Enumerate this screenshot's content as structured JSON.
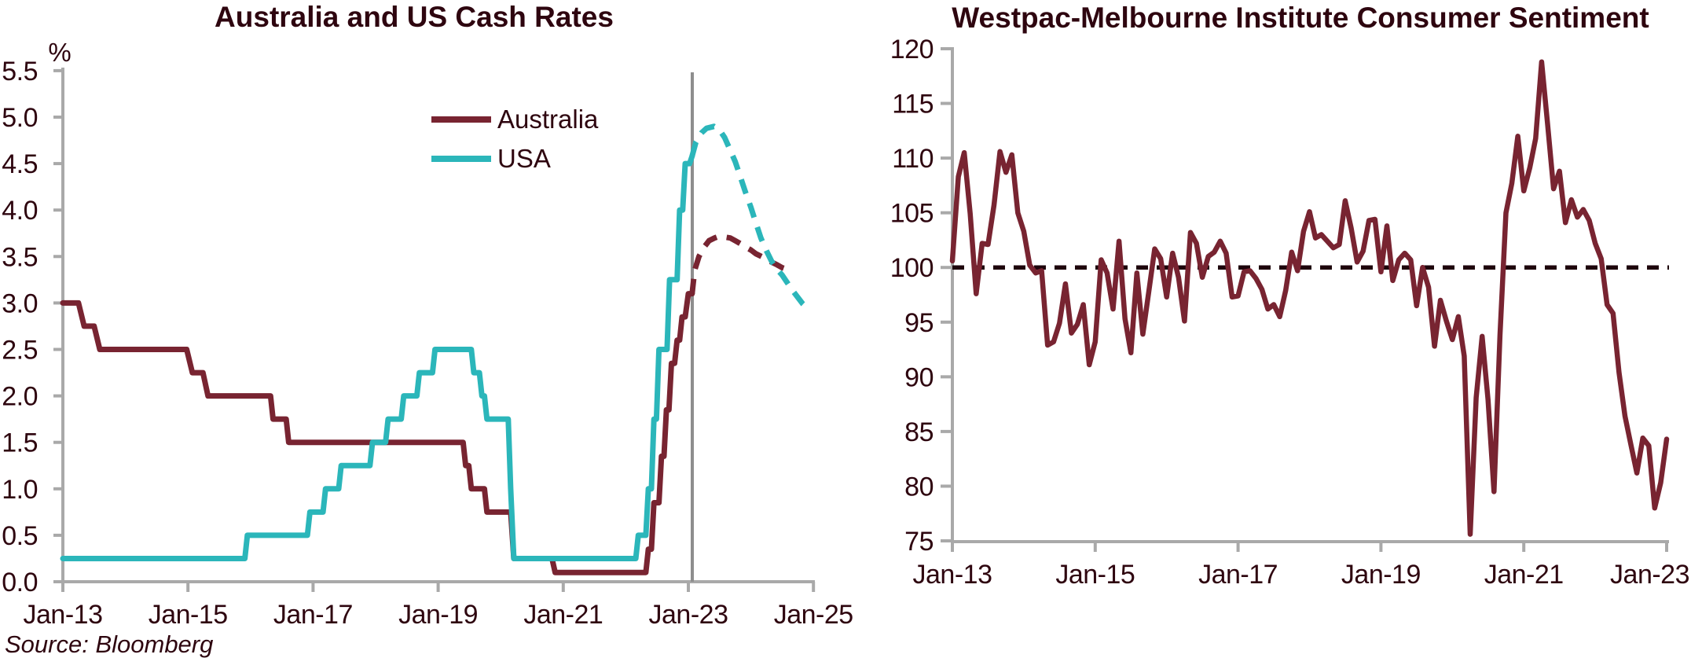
{
  "source_note": "Source: Bloomberg",
  "chart_data": [
    {
      "type": "line",
      "title": "Australia and US Cash Rates",
      "ylabel": "%",
      "xlabel": "",
      "xlim": [
        2013,
        2025
      ],
      "ylim": [
        0,
        5.5
      ],
      "grid": false,
      "legend_position": "upper-center-inside",
      "divider_x": 2023.06,
      "colors": {
        "australia": "#782431",
        "usa": "#2bb6ba",
        "axis": "#a9a9a9",
        "divider": "#8e8e8e",
        "ink": "#2e050f"
      },
      "legend": [
        "Australia",
        "USA"
      ],
      "y_ticks": [
        {
          "v": 5.5,
          "label": "5.5"
        },
        {
          "v": 5.0,
          "label": "5.0"
        },
        {
          "v": 4.5,
          "label": "4.5"
        },
        {
          "v": 4.0,
          "label": "4.0"
        },
        {
          "v": 3.5,
          "label": "3.5"
        },
        {
          "v": 3.0,
          "label": "3.0"
        },
        {
          "v": 2.5,
          "label": "2.5"
        },
        {
          "v": 2.0,
          "label": "2.0"
        },
        {
          "v": 1.5,
          "label": "1.5"
        },
        {
          "v": 1.0,
          "label": "1.0"
        },
        {
          "v": 0.5,
          "label": "0.5"
        },
        {
          "v": 0.0,
          "label": "0.0"
        }
      ],
      "x_ticks": [
        {
          "v": 2013,
          "label": "Jan-13"
        },
        {
          "v": 2015,
          "label": "Jan-15"
        },
        {
          "v": 2017,
          "label": "Jan-17"
        },
        {
          "v": 2019,
          "label": "Jan-19"
        },
        {
          "v": 2021,
          "label": "Jan-21"
        },
        {
          "v": 2023,
          "label": "Jan-23"
        },
        {
          "v": 2025,
          "label": "Jan-25"
        }
      ],
      "series": [
        {
          "name": "Australia",
          "color": "#782431",
          "style": "solid",
          "points": [
            [
              2013.0,
              3.0
            ],
            [
              2013.25,
              3.0
            ],
            [
              2013.34,
              2.75
            ],
            [
              2013.5,
              2.75
            ],
            [
              2013.59,
              2.5
            ],
            [
              2014.98,
              2.5
            ],
            [
              2015.07,
              2.25
            ],
            [
              2015.24,
              2.25
            ],
            [
              2015.32,
              2.0
            ],
            [
              2016.32,
              2.0
            ],
            [
              2016.36,
              1.75
            ],
            [
              2016.57,
              1.75
            ],
            [
              2016.61,
              1.5
            ],
            [
              2019.4,
              1.5
            ],
            [
              2019.44,
              1.25
            ],
            [
              2019.49,
              1.25
            ],
            [
              2019.53,
              1.0
            ],
            [
              2019.74,
              1.0
            ],
            [
              2019.78,
              0.75
            ],
            [
              2020.16,
              0.75
            ],
            [
              2020.21,
              0.25
            ],
            [
              2020.82,
              0.25
            ],
            [
              2020.87,
              0.1
            ],
            [
              2022.32,
              0.1
            ],
            [
              2022.36,
              0.35
            ],
            [
              2022.41,
              0.35
            ],
            [
              2022.45,
              0.85
            ],
            [
              2022.53,
              0.85
            ],
            [
              2022.57,
              1.35
            ],
            [
              2022.61,
              1.35
            ],
            [
              2022.65,
              1.85
            ],
            [
              2022.69,
              1.85
            ],
            [
              2022.73,
              2.35
            ],
            [
              2022.78,
              2.35
            ],
            [
              2022.82,
              2.6
            ],
            [
              2022.86,
              2.6
            ],
            [
              2022.9,
              2.85
            ],
            [
              2022.95,
              2.85
            ],
            [
              2023.0,
              3.1
            ],
            [
              2023.06,
              3.1
            ]
          ]
        },
        {
          "name": "Australia forecast",
          "color": "#782431",
          "style": "dashed",
          "points": [
            [
              2023.06,
              3.1
            ],
            [
              2023.1,
              3.35
            ],
            [
              2023.17,
              3.5
            ],
            [
              2023.25,
              3.6
            ],
            [
              2023.33,
              3.67
            ],
            [
              2023.42,
              3.7
            ],
            [
              2023.5,
              3.72
            ],
            [
              2023.58,
              3.71
            ],
            [
              2023.67,
              3.7
            ],
            [
              2023.75,
              3.67
            ],
            [
              2023.83,
              3.64
            ],
            [
              2023.92,
              3.6
            ],
            [
              2024.0,
              3.57
            ],
            [
              2024.08,
              3.53
            ],
            [
              2024.17,
              3.5
            ],
            [
              2024.25,
              3.47
            ],
            [
              2024.33,
              3.44
            ],
            [
              2024.42,
              3.41
            ],
            [
              2024.5,
              3.38
            ],
            [
              2024.58,
              3.36
            ],
            [
              2024.67,
              3.34
            ]
          ]
        },
        {
          "name": "USA",
          "color": "#2bb6ba",
          "style": "solid",
          "points": [
            [
              2013.0,
              0.25
            ],
            [
              2015.91,
              0.25
            ],
            [
              2015.95,
              0.5
            ],
            [
              2016.91,
              0.5
            ],
            [
              2016.95,
              0.75
            ],
            [
              2017.16,
              0.75
            ],
            [
              2017.2,
              1.0
            ],
            [
              2017.41,
              1.0
            ],
            [
              2017.45,
              1.25
            ],
            [
              2017.91,
              1.25
            ],
            [
              2017.95,
              1.5
            ],
            [
              2018.16,
              1.5
            ],
            [
              2018.2,
              1.75
            ],
            [
              2018.41,
              1.75
            ],
            [
              2018.45,
              2.0
            ],
            [
              2018.66,
              2.0
            ],
            [
              2018.7,
              2.25
            ],
            [
              2018.91,
              2.25
            ],
            [
              2018.95,
              2.5
            ],
            [
              2019.53,
              2.5
            ],
            [
              2019.57,
              2.25
            ],
            [
              2019.66,
              2.25
            ],
            [
              2019.7,
              2.0
            ],
            [
              2019.74,
              2.0
            ],
            [
              2019.78,
              1.75
            ],
            [
              2020.12,
              1.75
            ],
            [
              2020.16,
              1.0
            ],
            [
              2020.21,
              0.25
            ],
            [
              2022.16,
              0.25
            ],
            [
              2022.2,
              0.5
            ],
            [
              2022.32,
              0.5
            ],
            [
              2022.36,
              1.0
            ],
            [
              2022.41,
              1.0
            ],
            [
              2022.45,
              1.75
            ],
            [
              2022.49,
              1.75
            ],
            [
              2022.53,
              2.5
            ],
            [
              2022.66,
              2.5
            ],
            [
              2022.7,
              3.25
            ],
            [
              2022.82,
              3.25
            ],
            [
              2022.86,
              4.0
            ],
            [
              2022.91,
              4.0
            ],
            [
              2022.95,
              4.5
            ],
            [
              2023.02,
              4.5
            ],
            [
              2023.06,
              4.58
            ]
          ]
        },
        {
          "name": "USA forecast",
          "color": "#2bb6ba",
          "style": "dashed",
          "points": [
            [
              2023.06,
              4.58
            ],
            [
              2023.12,
              4.73
            ],
            [
              2023.21,
              4.83
            ],
            [
              2023.29,
              4.88
            ],
            [
              2023.41,
              4.9
            ],
            [
              2023.5,
              4.86
            ],
            [
              2023.58,
              4.78
            ],
            [
              2023.66,
              4.66
            ],
            [
              2023.75,
              4.52
            ],
            [
              2023.83,
              4.36
            ],
            [
              2023.91,
              4.2
            ],
            [
              2024.0,
              4.03
            ],
            [
              2024.08,
              3.86
            ],
            [
              2024.16,
              3.7
            ],
            [
              2024.25,
              3.56
            ],
            [
              2024.33,
              3.45
            ],
            [
              2024.41,
              3.37
            ],
            [
              2024.5,
              3.3
            ],
            [
              2024.58,
              3.22
            ],
            [
              2024.66,
              3.14
            ],
            [
              2024.75,
              3.06
            ],
            [
              2024.83,
              2.99
            ],
            [
              2024.91,
              2.94
            ]
          ]
        }
      ]
    },
    {
      "type": "line",
      "title": "Westpac-Melbourne Institute Consumer Sentiment",
      "xlabel": "",
      "ylabel": "",
      "xlim": [
        2013,
        2023
      ],
      "ylim": [
        75,
        120
      ],
      "grid": false,
      "line_color": "#782431",
      "axis_color": "#a9a9a9",
      "reference_line": {
        "y": 100,
        "style": "dashed",
        "color": "#1e040c"
      },
      "y_ticks": [
        {
          "v": 120,
          "label": "120"
        },
        {
          "v": 115,
          "label": "115"
        },
        {
          "v": 110,
          "label": "110"
        },
        {
          "v": 105,
          "label": "105"
        },
        {
          "v": 100,
          "label": "100"
        },
        {
          "v": 95,
          "label": "95"
        },
        {
          "v": 90,
          "label": "90"
        },
        {
          "v": 85,
          "label": "85"
        },
        {
          "v": 80,
          "label": "80"
        },
        {
          "v": 75,
          "label": "75"
        }
      ],
      "x_ticks": [
        {
          "v": 2013,
          "label": "Jan-13"
        },
        {
          "v": 2015,
          "label": "Jan-15"
        },
        {
          "v": 2017,
          "label": "Jan-17"
        },
        {
          "v": 2019,
          "label": "Jan-19"
        },
        {
          "v": 2021,
          "label": "Jan-21"
        },
        {
          "v": 2023,
          "label": "Jan-23"
        }
      ],
      "x0": 2013,
      "x_step_years": 0.083333,
      "values": [
        100.6,
        108.3,
        110.5,
        104.9,
        97.6,
        102.2,
        102.1,
        105.7,
        110.6,
        108.7,
        110.3,
        105.0,
        103.3,
        100.2,
        99.5,
        99.7,
        92.9,
        93.2,
        94.9,
        98.5,
        94.0,
        94.8,
        96.6,
        91.1,
        93.2,
        100.7,
        99.5,
        96.2,
        102.4,
        95.3,
        92.2,
        99.5,
        93.9,
        97.8,
        101.7,
        100.8,
        97.3,
        101.3,
        99.1,
        95.1,
        103.2,
        102.2,
        99.1,
        101.0,
        101.4,
        102.4,
        101.3,
        97.3,
        97.4,
        99.6,
        99.7,
        99.0,
        98.0,
        96.2,
        96.6,
        95.5,
        97.9,
        101.4,
        99.7,
        103.3,
        105.1,
        102.7,
        103.0,
        102.4,
        101.8,
        102.1,
        106.1,
        103.6,
        100.5,
        101.5,
        104.3,
        104.4,
        99.6,
        103.8,
        98.8,
        100.7,
        101.3,
        100.7,
        96.5,
        100.0,
        98.2,
        92.8,
        97.0,
        95.1,
        93.4,
        95.5,
        91.9,
        75.6,
        88.1,
        93.7,
        87.9,
        79.5,
        93.8,
        105.0,
        107.7,
        112.0,
        107.0,
        109.1,
        111.8,
        118.8,
        113.1,
        107.2,
        108.8,
        104.1,
        106.2,
        104.6,
        105.3,
        104.3,
        102.2,
        100.8,
        96.6,
        95.8,
        90.4,
        86.4,
        83.8,
        81.2,
        84.4,
        83.7,
        78.0,
        80.3,
        84.3
      ]
    }
  ]
}
